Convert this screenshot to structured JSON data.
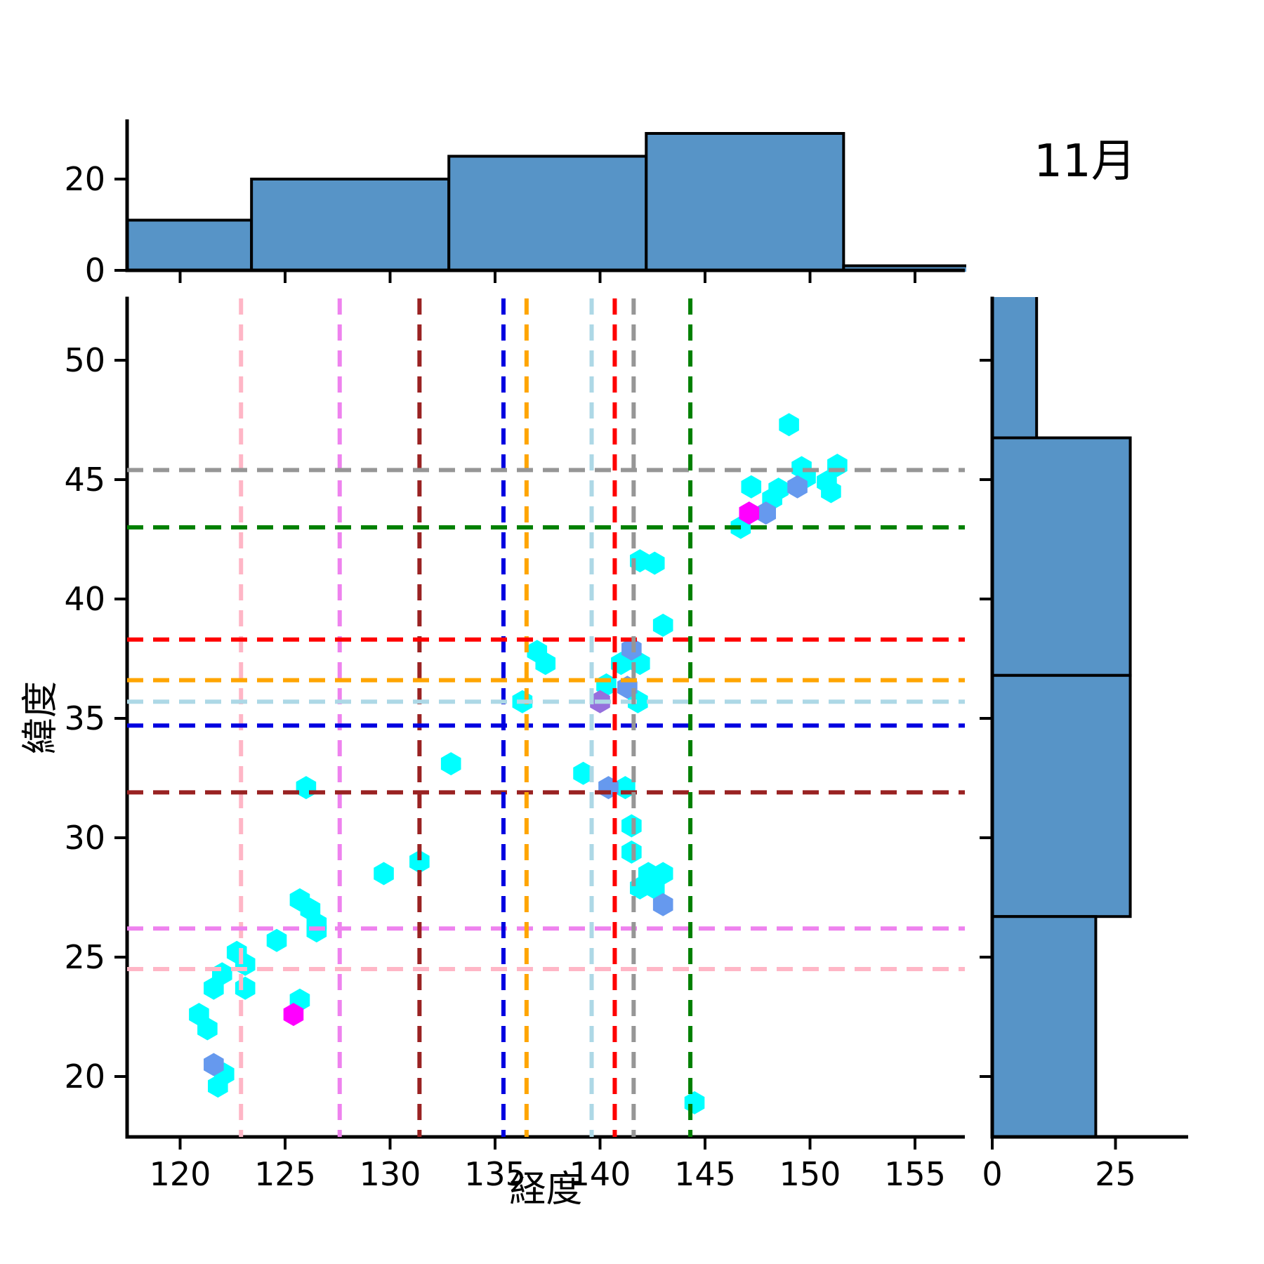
{
  "title": "11月",
  "axis_labels": {
    "xlabel": "経度",
    "ylabel": "緯度"
  },
  "chart_data": {
    "type": "scatter",
    "subtype": "joint-plot-with-marginal-histograms",
    "title": "11月",
    "xlabel": "経度",
    "ylabel": "緯度",
    "xlim": [
      117.5,
      157.4
    ],
    "ylim": [
      17.5,
      52.6
    ],
    "xticks": [
      120,
      125,
      130,
      135,
      140,
      145,
      150,
      155
    ],
    "yticks": [
      20,
      25,
      30,
      35,
      40,
      45,
      50
    ],
    "grid": false,
    "marker": "hexagon",
    "series": [
      {
        "name": "track-points-cyan",
        "color": "#00ffff",
        "points": [
          [
            125.7,
            27.4
          ],
          [
            126.2,
            27.0
          ],
          [
            126.5,
            26.4
          ],
          [
            126.5,
            26.1
          ],
          [
            124.6,
            25.7
          ],
          [
            122.7,
            25.2
          ],
          [
            123.1,
            24.7
          ],
          [
            122.0,
            24.3
          ],
          [
            121.6,
            23.7
          ],
          [
            123.1,
            23.7
          ],
          [
            125.7,
            23.2
          ],
          [
            120.9,
            22.6
          ],
          [
            121.3,
            22.0
          ],
          [
            122.1,
            20.1
          ],
          [
            121.8,
            19.6
          ],
          [
            126.0,
            32.1
          ],
          [
            129.7,
            28.5
          ],
          [
            131.4,
            29.0
          ],
          [
            132.9,
            33.1
          ],
          [
            136.3,
            35.7
          ],
          [
            137.0,
            37.8
          ],
          [
            137.4,
            37.3
          ],
          [
            139.2,
            32.7
          ],
          [
            140.3,
            36.4
          ],
          [
            141.0,
            37.3
          ],
          [
            141.9,
            37.3
          ],
          [
            141.8,
            35.7
          ],
          [
            141.2,
            32.1
          ],
          [
            141.5,
            30.5
          ],
          [
            141.5,
            29.4
          ],
          [
            142.3,
            28.5
          ],
          [
            143.0,
            28.5
          ],
          [
            141.9,
            27.9
          ],
          [
            142.6,
            27.9
          ],
          [
            143.0,
            38.9
          ],
          [
            141.9,
            41.6
          ],
          [
            142.6,
            41.5
          ],
          [
            144.5,
            18.9
          ],
          [
            146.7,
            43.0
          ],
          [
            147.2,
            44.7
          ],
          [
            148.2,
            44.2
          ],
          [
            148.5,
            44.6
          ],
          [
            149.6,
            45.5
          ],
          [
            149.8,
            45.1
          ],
          [
            150.8,
            44.9
          ],
          [
            151.0,
            44.5
          ],
          [
            151.3,
            45.6
          ],
          [
            149.0,
            47.3
          ]
        ]
      },
      {
        "name": "track-points-purple",
        "color": "#9670dd",
        "points": [
          [
            140.0,
            35.7
          ]
        ]
      },
      {
        "name": "track-points-blue",
        "color": "#6699ee",
        "points": [
          [
            121.6,
            20.5
          ],
          [
            140.4,
            32.1
          ],
          [
            141.5,
            37.9
          ],
          [
            141.3,
            36.3
          ],
          [
            143.0,
            27.2
          ],
          [
            147.9,
            43.6
          ],
          [
            149.4,
            44.7
          ]
        ]
      },
      {
        "name": "track-points-magenta",
        "color": "#ff00ff",
        "points": [
          [
            125.4,
            22.6
          ],
          [
            147.1,
            43.6
          ]
        ]
      }
    ],
    "crosshair_lines": [
      {
        "color": "#ffb6c6",
        "lon": 122.9,
        "lat": 24.5
      },
      {
        "color": "#ee82ee",
        "lon": 127.6,
        "lat": 26.2
      },
      {
        "color": "#992222",
        "lon": 131.4,
        "lat": 31.9
      },
      {
        "color": "#0000e0",
        "lon": 135.4,
        "lat": 34.7
      },
      {
        "color": "#ffa500",
        "lon": 136.5,
        "lat": 36.6
      },
      {
        "color": "#add8e6",
        "lon": 139.6,
        "lat": 35.7
      },
      {
        "color": "#ff0000",
        "lon": 140.7,
        "lat": 38.3
      },
      {
        "color": "#969696",
        "lon": 141.6,
        "lat": 45.4
      },
      {
        "color": "#008000",
        "lon": 144.3,
        "lat": 43.0
      }
    ],
    "top_histogram": {
      "orientation": "vertical",
      "bin_edges": [
        114.0,
        123.4,
        132.8,
        142.2,
        151.6,
        161.0
      ],
      "counts": [
        11,
        20,
        25,
        30,
        1
      ],
      "yticks": [
        0,
        20
      ],
      "fill": "#5794c7",
      "edge_color": "#000000"
    },
    "right_histogram": {
      "orientation": "horizontal",
      "bin_edges": [
        56.8,
        46.75,
        36.8,
        26.7,
        16.7
      ],
      "counts": [
        9,
        28,
        28,
        21
      ],
      "xticks": [
        0,
        25
      ],
      "fill": "#5794c7",
      "edge_color": "#000000"
    }
  }
}
